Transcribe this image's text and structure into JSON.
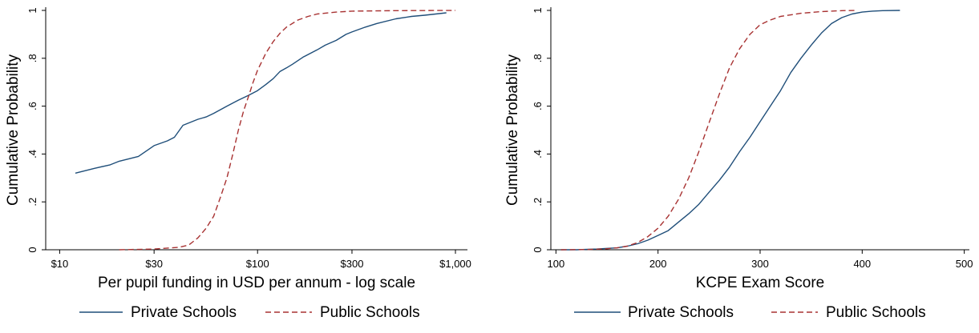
{
  "chart_data": [
    {
      "type": "line",
      "ylabel": "Cumulative Probability",
      "xlabel": "Per pupil funding in USD per annum - log scale",
      "x_scale": "log",
      "xlim": [
        8.5,
        1150
      ],
      "ylim": [
        0,
        1
      ],
      "xticks": [
        10,
        30,
        100,
        300,
        1000
      ],
      "xtick_labels": [
        "$10",
        "$30",
        "$100",
        "$300",
        "$1,000"
      ],
      "yticks": [
        0,
        0.2,
        0.4,
        0.6,
        0.8,
        1
      ],
      "ytick_labels": [
        "0",
        ".2",
        ".4",
        ".6",
        ".8",
        "1"
      ],
      "grid": false,
      "legend_position": "bottom",
      "series": [
        {
          "name": "Private Schools",
          "color": "#1f4e79",
          "dash": "solid",
          "x": [
            12,
            15,
            18,
            20,
            25,
            30,
            35,
            38,
            42,
            50,
            55,
            60,
            70,
            80,
            90,
            100,
            110,
            120,
            130,
            140,
            150,
            170,
            200,
            220,
            250,
            280,
            300,
            350,
            400,
            500,
            600,
            700,
            900
          ],
          "y": [
            0.32,
            0.34,
            0.355,
            0.37,
            0.39,
            0.435,
            0.455,
            0.47,
            0.52,
            0.545,
            0.555,
            0.57,
            0.6,
            0.625,
            0.645,
            0.665,
            0.69,
            0.715,
            0.745,
            0.76,
            0.775,
            0.805,
            0.835,
            0.855,
            0.875,
            0.9,
            0.91,
            0.93,
            0.945,
            0.965,
            0.975,
            0.98,
            0.99
          ]
        },
        {
          "name": "Public Schools",
          "color": "#a83232",
          "dash": "dashed",
          "x": [
            20,
            30,
            40,
            45,
            50,
            55,
            60,
            65,
            70,
            75,
            80,
            85,
            90,
            95,
            100,
            110,
            120,
            130,
            140,
            160,
            180,
            200,
            250,
            300,
            500,
            1000
          ],
          "y": [
            0.0,
            0.003,
            0.01,
            0.02,
            0.05,
            0.09,
            0.14,
            0.22,
            0.3,
            0.4,
            0.5,
            0.58,
            0.64,
            0.7,
            0.75,
            0.82,
            0.87,
            0.905,
            0.93,
            0.96,
            0.975,
            0.985,
            0.993,
            0.997,
            0.999,
            1.0
          ]
        }
      ]
    },
    {
      "type": "line",
      "ylabel": "Cumulative Probability",
      "xlabel": "KCPE Exam Score",
      "x_scale": "linear",
      "xlim": [
        95,
        505
      ],
      "ylim": [
        0,
        1
      ],
      "xticks": [
        100,
        200,
        300,
        400,
        500
      ],
      "xtick_labels": [
        "100",
        "200",
        "300",
        "400",
        "500"
      ],
      "yticks": [
        0,
        0.2,
        0.4,
        0.6,
        0.8,
        1
      ],
      "ytick_labels": [
        "0",
        ".2",
        ".4",
        ".6",
        ".8",
        "1"
      ],
      "grid": false,
      "legend_position": "bottom",
      "series": [
        {
          "name": "Private Schools",
          "color": "#1f4e79",
          "dash": "solid",
          "x": [
            105,
            120,
            140,
            160,
            170,
            180,
            190,
            200,
            210,
            220,
            230,
            240,
            250,
            260,
            270,
            280,
            290,
            300,
            310,
            320,
            330,
            340,
            350,
            360,
            370,
            380,
            390,
            400,
            410,
            420,
            437
          ],
          "y": [
            0.0,
            0.0,
            0.003,
            0.008,
            0.015,
            0.025,
            0.04,
            0.06,
            0.08,
            0.115,
            0.15,
            0.19,
            0.24,
            0.29,
            0.345,
            0.41,
            0.47,
            0.535,
            0.6,
            0.665,
            0.74,
            0.8,
            0.855,
            0.905,
            0.945,
            0.97,
            0.985,
            0.993,
            0.997,
            0.999,
            1.0
          ]
        },
        {
          "name": "Public Schools",
          "color": "#a83232",
          "dash": "dashed",
          "x": [
            105,
            130,
            150,
            160,
            170,
            180,
            190,
            200,
            210,
            220,
            230,
            240,
            250,
            260,
            270,
            280,
            290,
            300,
            310,
            320,
            340,
            360,
            380,
            395
          ],
          "y": [
            0.0,
            0.001,
            0.004,
            0.008,
            0.015,
            0.03,
            0.055,
            0.09,
            0.14,
            0.21,
            0.3,
            0.41,
            0.53,
            0.65,
            0.76,
            0.84,
            0.9,
            0.94,
            0.96,
            0.975,
            0.988,
            0.995,
            0.999,
            1.0
          ]
        }
      ]
    }
  ]
}
